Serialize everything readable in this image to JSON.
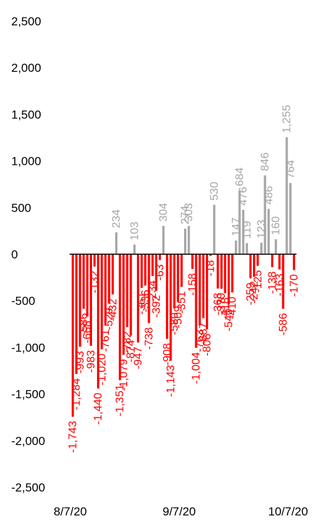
{
  "chart_data": {
    "type": "bar",
    "title": "",
    "xlabel": "",
    "ylabel": "",
    "ylim": [
      -2500,
      2500
    ],
    "yticks": [
      "2,500",
      "2,000",
      "1,500",
      "1,000",
      "500",
      "0",
      "-500",
      "-1,000",
      "-1,500",
      "-2,000",
      "-2,500"
    ],
    "ytick_values": [
      2500,
      2000,
      1500,
      1000,
      500,
      0,
      -500,
      -1000,
      -1500,
      -2000,
      -2500
    ],
    "x_start": "8/7/20",
    "x_ticks": [
      "8/7/20",
      "9/7/20",
      "10/7/20"
    ],
    "positive_color": "#a6a6a6",
    "negative_color": "#ff0000",
    "axis_color": "#000000",
    "grid": false,
    "legend": "none",
    "values": [
      -1743,
      -1284,
      -993,
      -586,
      -668,
      -983,
      -132,
      -1440,
      -1020,
      -761,
      -529,
      -432,
      234,
      -1351,
      -1079,
      -782,
      -874,
      103,
      -947,
      -361,
      -336,
      -738,
      -234,
      -392,
      -63,
      304,
      -908,
      -1143,
      -580,
      -509,
      -351,
      274,
      303,
      -158,
      -1004,
      -763,
      -687,
      -806,
      -18,
      530,
      -368,
      -370,
      -418,
      -540,
      -410,
      147,
      684,
      476,
      119,
      -259,
      -242,
      -125,
      123,
      846,
      486,
      -138,
      160,
      -163,
      -586,
      1255,
      764,
      -170
    ],
    "labels": [
      "-1,743",
      "-1,284",
      "-993",
      "-586",
      "-668",
      "-983",
      "-132",
      "-1,440",
      "-1,020",
      "-761",
      "-529",
      "-432",
      "234",
      "-1,351",
      "-1,079",
      "-782",
      "-874",
      "103",
      "-947",
      "-361",
      "-336",
      "-738",
      "-234",
      "-392",
      "-63",
      "304",
      "-908",
      "-1,143",
      "-580",
      "-509",
      "-351",
      "274",
      "303",
      "-158",
      "-1,004",
      "-763",
      "-687",
      "-806",
      "-18",
      "530",
      "-368",
      "-370",
      "-418",
      "-540",
      "-410",
      "147",
      "684",
      "476",
      "119",
      "-259",
      "-242",
      "-125",
      "123",
      "846",
      "486",
      "-138",
      "160",
      "-163",
      "-586",
      "1,255",
      "764",
      "-170"
    ]
  }
}
